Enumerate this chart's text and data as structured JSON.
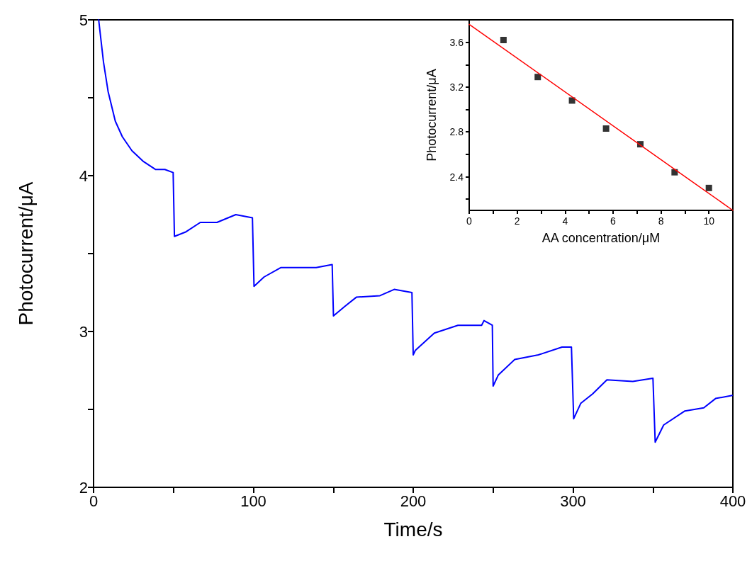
{
  "chart_data": [
    {
      "type": "line",
      "xlabel": "Time/s",
      "ylabel": "Photocurrent/μA",
      "xlim": [
        0,
        400
      ],
      "ylim": [
        2,
        5
      ],
      "xticks": [
        0,
        {
          "value": 50,
          "label": null
        },
        100,
        {
          "value": 150,
          "label": null
        },
        200,
        {
          "value": 250,
          "label": null
        },
        300,
        {
          "value": 350,
          "label": null
        },
        400
      ],
      "yticks": [
        2,
        {
          "value": 2.5,
          "label": null
        },
        3,
        {
          "value": 3.5,
          "label": null
        },
        4,
        {
          "value": 4.5,
          "label": null
        },
        5
      ],
      "grid": false,
      "line_style": "solid",
      "series": [
        {
          "color": "#0000ff",
          "marker": "none",
          "x": [
            3.2,
            6.2,
            9.1,
            13.6,
            18,
            24,
            31.3,
            38.7,
            44.6,
            49.8,
            50.6,
            57.9,
            66.8,
            77.2,
            89,
            99.4,
            100.4,
            106.7,
            117.1,
            127.5,
            139.3,
            149.3,
            150.1,
            157.1,
            164.4,
            179.2,
            188.1,
            199.2,
            200,
            201.4,
            213.2,
            228,
            242.8,
            244.3,
            249.5,
            250,
            253.2,
            263.5,
            278.3,
            293.1,
            299,
            300.4,
            304.9,
            312.3,
            321.2,
            337.4,
            350,
            351.4,
            356.7,
            370,
            381.8,
            389.2,
            399.6
          ],
          "values": [
            5,
            4.73,
            4.54,
            4.35,
            4.25,
            4.16,
            4.09,
            4.04,
            4.04,
            4.02,
            3.61,
            3.64,
            3.7,
            3.7,
            3.75,
            3.73,
            3.29,
            3.35,
            3.41,
            3.41,
            3.41,
            3.43,
            3.1,
            3.16,
            3.22,
            3.23,
            3.27,
            3.25,
            2.85,
            2.88,
            2.99,
            3.04,
            3.04,
            3.07,
            3.04,
            2.65,
            2.72,
            2.82,
            2.85,
            2.9,
            2.9,
            2.44,
            2.54,
            2.6,
            2.69,
            2.68,
            2.7,
            2.29,
            2.4,
            2.49,
            2.51,
            2.57,
            2.59
          ]
        }
      ]
    },
    {
      "type": "scatter",
      "xlabel": "AA concentration/μM",
      "ylabel": "Photocurrent/μA",
      "xlim": [
        0,
        11
      ],
      "ylim": [
        2.1,
        3.8
      ],
      "xticks": [
        0,
        {
          "value": 1,
          "label": null
        },
        2,
        {
          "value": 3,
          "label": null
        },
        4,
        {
          "value": 5,
          "label": null
        },
        6,
        {
          "value": 7,
          "label": null
        },
        8,
        {
          "value": 9,
          "label": null
        },
        10
      ],
      "yticks": [
        {
          "value": 2.2,
          "label": null
        },
        2.4,
        {
          "value": 2.6,
          "label": null
        },
        2.8,
        {
          "value": 3,
          "label": null
        },
        3.2,
        {
          "value": 3.4,
          "label": null
        },
        3.6
      ],
      "grid": false,
      "series": [
        {
          "color": "#000000",
          "marker": "square",
          "x": [
            1.43,
            2.86,
            4.29,
            5.71,
            7.14,
            8.57,
            10
          ],
          "values": [
            3.62,
            3.29,
            3.08,
            2.83,
            2.69,
            2.44,
            2.3
          ]
        },
        {
          "type": "line",
          "color": "#ff0000",
          "marker": "none",
          "x": [
            0,
            11
          ],
          "values": [
            3.76,
            2.1
          ]
        }
      ]
    }
  ]
}
